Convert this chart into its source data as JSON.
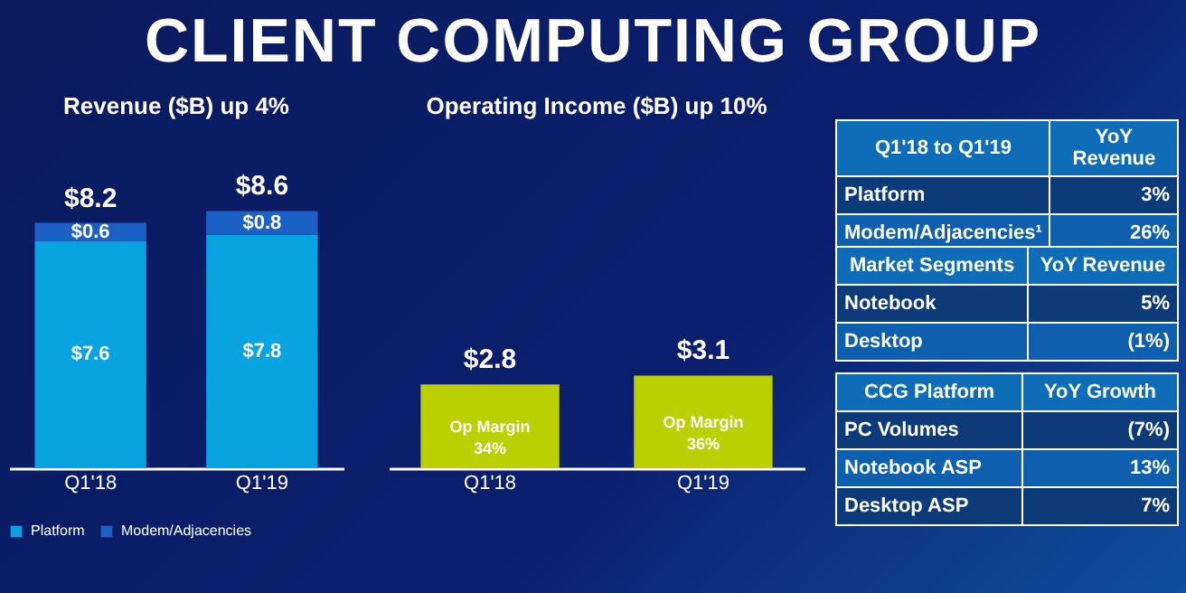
{
  "chart_data": [
    {
      "type": "bar",
      "title": "CLIENT COMPUTING GROUP",
      "subtitle": "Revenue ($B) up 4%",
      "categories": [
        "Q1'18",
        "Q1'19"
      ],
      "stacked": true,
      "legend": "bottom",
      "series": [
        {
          "name": "Platform",
          "color": "#0aa3e2",
          "values": [
            7.6,
            7.8
          ],
          "value_labels": [
            "$7.6",
            "$7.8"
          ]
        },
        {
          "name": "Modem/Adjacencies",
          "color": "#1c62c6",
          "values": [
            0.6,
            0.8
          ],
          "value_labels": [
            "$0.6",
            "$0.8"
          ]
        }
      ],
      "totals": [
        "$8.2",
        "$8.6"
      ]
    },
    {
      "type": "bar",
      "title": "Operating Income ($B) up 10%",
      "categories": [
        "Q1'18",
        "Q1'19"
      ],
      "values": [
        2.8,
        3.1
      ],
      "color": "#bccf00",
      "value_labels": [
        "$2.8",
        "$3.1"
      ],
      "annotations": [
        "Op Margin\n34%",
        "Op Margin\n36%"
      ]
    },
    {
      "type": "other",
      "title": "Q1'18 to Q1'19",
      "ylabel": "YoY Revenue",
      "categories": [
        "Platform",
        "Modem/Adjacencies¹"
      ],
      "value_labels": [
        "3%",
        "26%"
      ]
    },
    {
      "type": "other",
      "title": "Market Segments",
      "ylabel": "YoY Revenue",
      "categories": [
        "Notebook",
        "Desktop"
      ],
      "value_labels": [
        "5%",
        "(1%)"
      ]
    },
    {
      "type": "other",
      "title": "CCG Platform",
      "ylabel": "YoY Growth",
      "categories": [
        "PC Volumes",
        "Notebook ASP",
        "Desktop ASP"
      ],
      "value_labels": [
        "(7%)",
        "13%",
        "7%"
      ]
    }
  ]
}
